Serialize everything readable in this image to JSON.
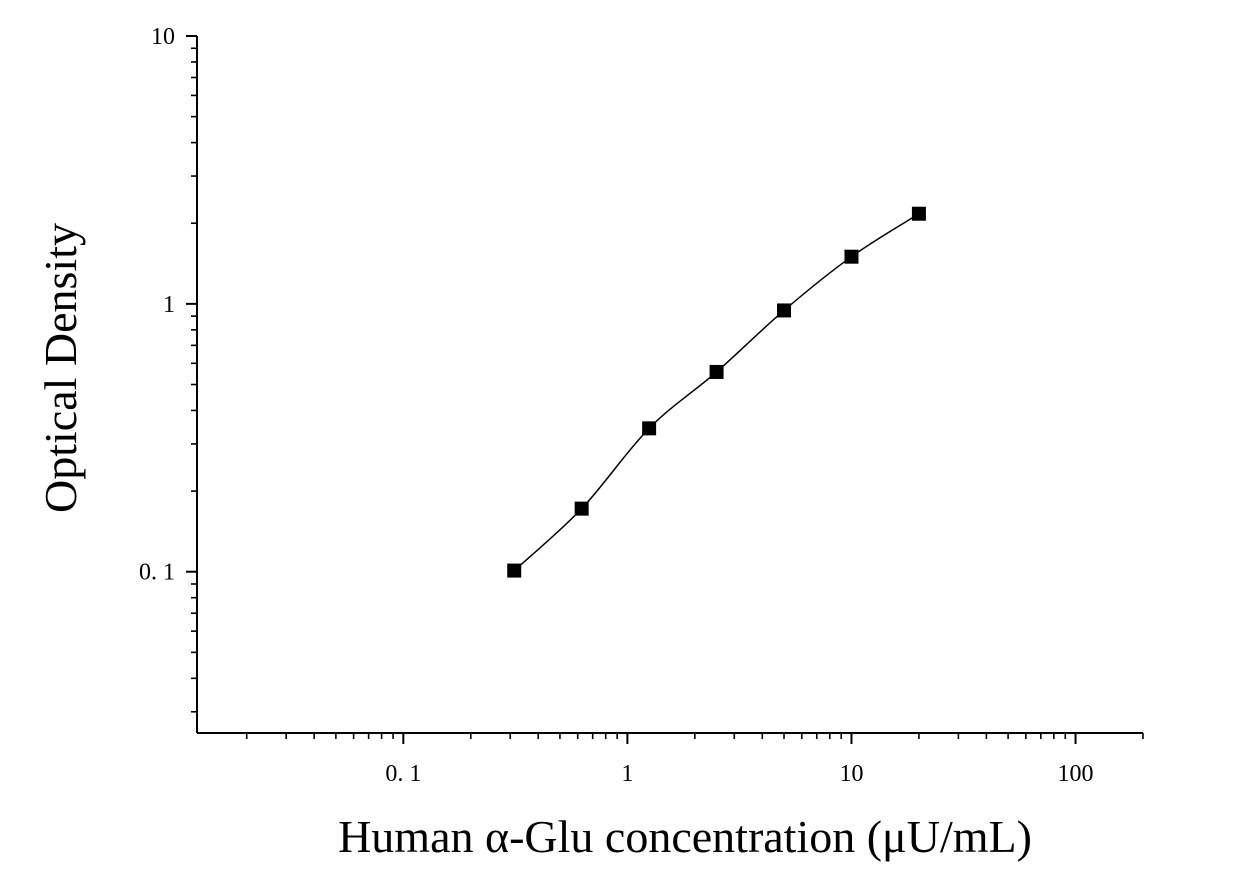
{
  "chart_data": {
    "type": "scatter",
    "title": "",
    "xlabel": "Human α-Glu concentration (μU/mL)",
    "ylabel": "Optical Density",
    "x_scale": "log",
    "y_scale": "log",
    "xlim": [
      0.012,
      200
    ],
    "ylim": [
      0.025,
      10
    ],
    "x_ticks": [
      {
        "value": 0.1,
        "label": "0. 1"
      },
      {
        "value": 1,
        "label": "1"
      },
      {
        "value": 10,
        "label": "10"
      },
      {
        "value": 100,
        "label": "100"
      }
    ],
    "y_ticks": [
      {
        "value": 0.1,
        "label": "0. 1"
      },
      {
        "value": 1,
        "label": "1"
      },
      {
        "value": 10,
        "label": "10"
      }
    ],
    "grid": false,
    "marker_color": "#000000",
    "line_color": "#000000",
    "series": [
      {
        "marker": "square",
        "points": [
          {
            "x": 0.3125,
            "y": 0.101
          },
          {
            "x": 0.625,
            "y": 0.172
          },
          {
            "x": 1.25,
            "y": 0.343
          },
          {
            "x": 2.5,
            "y": 0.557
          },
          {
            "x": 5,
            "y": 0.945
          },
          {
            "x": 10,
            "y": 1.5
          },
          {
            "x": 20,
            "y": 2.17
          }
        ]
      }
    ]
  }
}
